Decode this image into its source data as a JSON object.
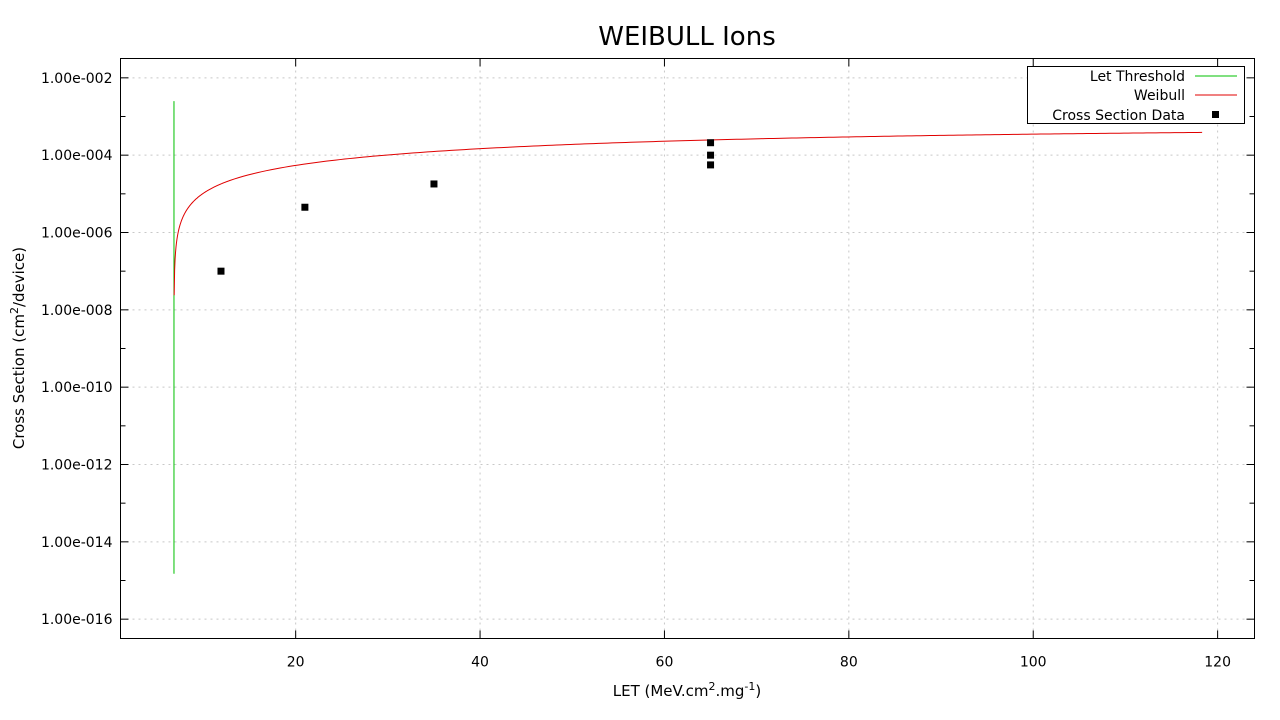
{
  "colors": {
    "threshold": "#00c000",
    "weibull": "#e00000",
    "data_points": "#000000",
    "grid": "#c8c8c8",
    "axis": "#000000"
  },
  "chart_data": {
    "type": "line",
    "title": "WEIBULL Ions",
    "xlabel_parts": {
      "pre": "LET (MeV.cm",
      "sup1": "2",
      "mid": ".mg",
      "sup2": "-1",
      "post": ")"
    },
    "ylabel_parts": {
      "pre": "Cross Section (cm",
      "sup1": "2",
      "post": "/device)"
    },
    "xlim": [
      1,
      124
    ],
    "ylim_log10": [
      -16.5,
      -1.5
    ],
    "y_scale": "log",
    "grid": true,
    "legend_position": "top-right",
    "x_ticks": [
      {
        "value": 20,
        "label": "20"
      },
      {
        "value": 40,
        "label": "40"
      },
      {
        "value": 60,
        "label": "60"
      },
      {
        "value": 80,
        "label": "80"
      },
      {
        "value": 100,
        "label": "100"
      },
      {
        "value": 120,
        "label": "120"
      }
    ],
    "y_ticks": [
      {
        "exp": -2,
        "label": "1.00e-002"
      },
      {
        "exp": -4,
        "label": "1.00e-004"
      },
      {
        "exp": -6,
        "label": "1.00e-006"
      },
      {
        "exp": -8,
        "label": "1.00e-008"
      },
      {
        "exp": -10,
        "label": "1.00e-010"
      },
      {
        "exp": -12,
        "label": "1.00e-012"
      },
      {
        "exp": -14,
        "label": "1.00e-014"
      },
      {
        "exp": -16,
        "label": "1.00e-016"
      }
    ],
    "y_minor_ticks_exp": [
      -3,
      -5,
      -7,
      -9,
      -11,
      -13,
      -15
    ],
    "series": [
      {
        "name": "Let Threshold",
        "style": "line",
        "color_key": "threshold",
        "x": [
          6.8,
          6.8
        ],
        "y": [
          0.0025,
          1.5e-15
        ]
      },
      {
        "name": "Weibull",
        "style": "line",
        "color_key": "weibull",
        "threshold": 6.8,
        "width": 80,
        "shape": 1.2,
        "saturation": 0.0005,
        "x_max": 118.6
      },
      {
        "name": "Cross Section Data",
        "style": "points",
        "color_key": "data_points",
        "x": [
          11.9,
          21.0,
          35.0,
          65.0,
          65.0,
          65.0
        ],
        "y": [
          1e-07,
          4.5e-06,
          1.8e-05,
          0.00021,
          0.0001,
          5.6e-05
        ]
      }
    ]
  }
}
